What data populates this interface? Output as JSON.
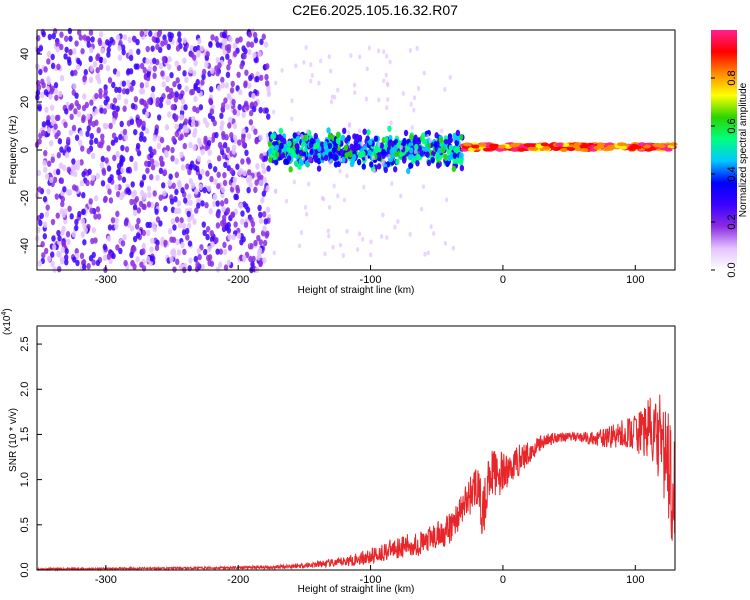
{
  "title": "C2E6.2025.105.16.32.R07",
  "chart_data": [
    {
      "type": "heatmap",
      "xlabel": "Height of straight line (km)",
      "ylabel": "Frequency (Hz)",
      "xlim": [
        -352,
        130
      ],
      "ylim": [
        -50,
        50
      ],
      "xticks": [
        -300,
        -200,
        -100,
        0,
        100
      ],
      "yticks": [
        -40,
        -20,
        0,
        20,
        40
      ],
      "colorbar": {
        "label": "Normalized spectral amplitude",
        "range": [
          0,
          1
        ],
        "ticks": [
          "0.0",
          "0.2",
          "0.4",
          "0.6",
          "0.8"
        ],
        "colors": [
          "#ffffff",
          "#e3c2ff",
          "#8a2be2",
          "#3a00ff",
          "#0000ff",
          "#00c8ff",
          "#00ff7f",
          "#2bd400",
          "#ffff00",
          "#ff8c00",
          "#ff0000",
          "#ff2090"
        ]
      },
      "regions": [
        {
          "x_start": -352,
          "x_end": -176,
          "freq_range": [
            -50,
            50
          ],
          "amplitude": 0.15
        },
        {
          "x_start": -176,
          "x_end": -30,
          "freq_range": [
            -10,
            10
          ],
          "amplitude": 0.45
        },
        {
          "x_start": -30,
          "x_end": 130,
          "freq_range": [
            0,
            2.5
          ],
          "amplitude": 0.95
        }
      ]
    },
    {
      "type": "line",
      "xlabel": "Height of straight line (km)",
      "ylabel": "SNR (10 * v/v)",
      "yscale_label": "(x10",
      "yscale_exp": "4",
      "yscale_close": ")",
      "xlim": [
        -352,
        130
      ],
      "ylim": [
        0,
        27000
      ],
      "xticks": [
        -300,
        -200,
        -100,
        0,
        100
      ],
      "yticks": [
        "0.0",
        "0.5",
        "1.0",
        "1.5",
        "2.0",
        "2.5"
      ],
      "color": "#e8262a",
      "x": [
        -352,
        -300,
        -250,
        -200,
        -175,
        -150,
        -125,
        -100,
        -80,
        -60,
        -40,
        -30,
        -20,
        -15,
        -10,
        0,
        10,
        20,
        30,
        40,
        50,
        60,
        70,
        80,
        90,
        100,
        110,
        120,
        128
      ],
      "y": [
        100,
        150,
        200,
        250,
        300,
        500,
        800,
        1500,
        2500,
        3000,
        4500,
        7000,
        9500,
        6000,
        11000,
        10500,
        12000,
        13000,
        14200,
        14700,
        14800,
        14700,
        14500,
        14700,
        15000,
        15200,
        15500,
        14000,
        10000
      ],
      "noise_amplitude": [
        100,
        100,
        100,
        150,
        200,
        300,
        500,
        900,
        1200,
        1400,
        1800,
        2000,
        2500,
        3000,
        2600,
        2400,
        2000,
        1200,
        800,
        600,
        500,
        600,
        800,
        1200,
        1600,
        2200,
        3500,
        5500,
        7000
      ]
    }
  ]
}
